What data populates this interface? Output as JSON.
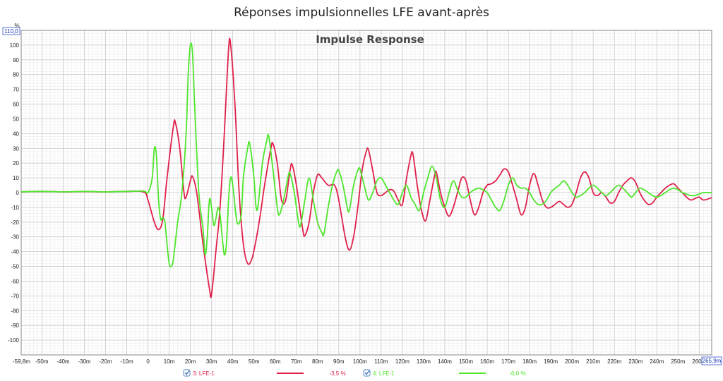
{
  "window": {
    "title": "Réponses impulsionnelles LFE avant-après"
  },
  "chart_data": {
    "type": "line",
    "title": "Impulse Response",
    "ylabel": "%",
    "y_top_box": "110,0",
    "x_right_box": "265,9m",
    "xlim": [
      -59.8,
      265.9
    ],
    "ylim": [
      -110,
      110
    ],
    "grid": true,
    "y_ticks": [
      100,
      90,
      80,
      70,
      60,
      50,
      40,
      30,
      20,
      10,
      0,
      -10,
      -20,
      -30,
      -40,
      -50,
      -60,
      -70,
      -80,
      -90,
      -100
    ],
    "x_ticks": [
      {
        "v": -59.8,
        "label": "-59,8m"
      },
      {
        "v": -50,
        "label": "-50m"
      },
      {
        "v": -40,
        "label": "-40m"
      },
      {
        "v": -30,
        "label": "-30m"
      },
      {
        "v": -20,
        "label": "-20m"
      },
      {
        "v": -10,
        "label": "-10m"
      },
      {
        "v": 0,
        "label": "0"
      },
      {
        "v": 10,
        "label": "10m"
      },
      {
        "v": 20,
        "label": "20m"
      },
      {
        "v": 30,
        "label": "30m"
      },
      {
        "v": 40,
        "label": "40m"
      },
      {
        "v": 50,
        "label": "50m"
      },
      {
        "v": 60,
        "label": "60m"
      },
      {
        "v": 70,
        "label": "70m"
      },
      {
        "v": 80,
        "label": "80m"
      },
      {
        "v": 90,
        "label": "90m"
      },
      {
        "v": 100,
        "label": "100m"
      },
      {
        "v": 110,
        "label": "110m"
      },
      {
        "v": 120,
        "label": "120m"
      },
      {
        "v": 130,
        "label": "130m"
      },
      {
        "v": 140,
        "label": "140m"
      },
      {
        "v": 150,
        "label": "150m"
      },
      {
        "v": 160,
        "label": "160m"
      },
      {
        "v": 170,
        "label": "170m"
      },
      {
        "v": 180,
        "label": "180m"
      },
      {
        "v": 190,
        "label": "190m"
      },
      {
        "v": 200,
        "label": "200m"
      },
      {
        "v": 210,
        "label": "210m"
      },
      {
        "v": 220,
        "label": "220m"
      },
      {
        "v": 230,
        "label": "230m"
      },
      {
        "v": 240,
        "label": "240m"
      },
      {
        "v": 250,
        "label": "250m"
      },
      {
        "v": 260,
        "label": "260m"
      }
    ],
    "series": [
      {
        "name": "3: LFE-1",
        "value_label": "-3,5 %",
        "color": "#e0204a",
        "points": [
          [
            -59.8,
            0.5
          ],
          [
            -50,
            0.8
          ],
          [
            -40,
            0.5
          ],
          [
            -30,
            0.7
          ],
          [
            -20,
            0.5
          ],
          [
            -10,
            0.8
          ],
          [
            -2,
            0.5
          ],
          [
            0,
            -5
          ],
          [
            3,
            -20
          ],
          [
            5,
            -25
          ],
          [
            7,
            -18
          ],
          [
            9,
            10
          ],
          [
            12,
            45
          ],
          [
            13,
            47
          ],
          [
            15,
            30
          ],
          [
            17,
            0
          ],
          [
            18,
            -3
          ],
          [
            20,
            8
          ],
          [
            21,
            11
          ],
          [
            23,
            0
          ],
          [
            26,
            -35
          ],
          [
            29,
            -65
          ],
          [
            30,
            -69
          ],
          [
            32,
            -40
          ],
          [
            34,
            -10
          ],
          [
            36,
            40
          ],
          [
            38,
            97
          ],
          [
            39,
            100
          ],
          [
            41,
            60
          ],
          [
            43,
            0
          ],
          [
            45,
            -35
          ],
          [
            47,
            -48
          ],
          [
            49,
            -45
          ],
          [
            51,
            -32
          ],
          [
            53,
            -15
          ],
          [
            55,
            5
          ],
          [
            58,
            30
          ],
          [
            59,
            33
          ],
          [
            61,
            20
          ],
          [
            63,
            -5
          ],
          [
            65,
            -5
          ],
          [
            67,
            15
          ],
          [
            68,
            19
          ],
          [
            70,
            5
          ],
          [
            73,
            -25
          ],
          [
            74,
            -29
          ],
          [
            76,
            -20
          ],
          [
            78,
            0
          ],
          [
            80,
            12
          ],
          [
            82,
            10
          ],
          [
            85,
            5
          ],
          [
            88,
            5
          ],
          [
            90,
            -5
          ],
          [
            93,
            -30
          ],
          [
            95,
            -39
          ],
          [
            97,
            -30
          ],
          [
            99,
            -10
          ],
          [
            101,
            15
          ],
          [
            103,
            28
          ],
          [
            104,
            29
          ],
          [
            106,
            15
          ],
          [
            108,
            0
          ],
          [
            110,
            -2
          ],
          [
            112,
            0
          ],
          [
            114,
            2
          ],
          [
            116,
            1
          ],
          [
            118,
            -5
          ],
          [
            120,
            -8
          ],
          [
            122,
            10
          ],
          [
            124,
            25
          ],
          [
            125,
            26
          ],
          [
            127,
            5
          ],
          [
            129,
            -12
          ],
          [
            131,
            -19
          ],
          [
            133,
            -5
          ],
          [
            135,
            10
          ],
          [
            136,
            14
          ],
          [
            138,
            0
          ],
          [
            140,
            -10
          ],
          [
            142,
            -16
          ],
          [
            144,
            -10
          ],
          [
            146,
            0
          ],
          [
            148,
            10
          ],
          [
            150,
            8
          ],
          [
            152,
            -5
          ],
          [
            154,
            -15
          ],
          [
            156,
            -10
          ],
          [
            158,
            0
          ],
          [
            160,
            5
          ],
          [
            162,
            6
          ],
          [
            164,
            8
          ],
          [
            166,
            12
          ],
          [
            168,
            16
          ],
          [
            170,
            14
          ],
          [
            172,
            5
          ],
          [
            174,
            -5
          ],
          [
            176,
            -15
          ],
          [
            178,
            -10
          ],
          [
            180,
            5
          ],
          [
            182,
            13
          ],
          [
            184,
            5
          ],
          [
            186,
            -5
          ],
          [
            188,
            -10
          ],
          [
            190,
            -10
          ],
          [
            192,
            -8
          ],
          [
            194,
            -6
          ],
          [
            196,
            -8
          ],
          [
            198,
            -10
          ],
          [
            200,
            -8
          ],
          [
            202,
            0
          ],
          [
            204,
            10
          ],
          [
            206,
            14
          ],
          [
            208,
            10
          ],
          [
            210,
            0
          ],
          [
            212,
            -2
          ],
          [
            214,
            0
          ],
          [
            216,
            -3
          ],
          [
            218,
            -7
          ],
          [
            220,
            -6
          ],
          [
            222,
            0
          ],
          [
            224,
            5
          ],
          [
            226,
            8
          ],
          [
            228,
            10
          ],
          [
            230,
            7
          ],
          [
            232,
            0
          ],
          [
            234,
            -5
          ],
          [
            236,
            -8
          ],
          [
            238,
            -7
          ],
          [
            240,
            -3
          ],
          [
            242,
            0
          ],
          [
            244,
            3
          ],
          [
            246,
            5
          ],
          [
            248,
            6
          ],
          [
            250,
            3
          ],
          [
            252,
            0
          ],
          [
            254,
            -3
          ],
          [
            256,
            -5
          ],
          [
            258,
            -4
          ],
          [
            260,
            -3
          ],
          [
            262,
            -5
          ],
          [
            265.9,
            -3.5
          ]
        ]
      },
      {
        "name": "4: LFE-1",
        "value_label": "-0,0 %",
        "color": "#4ee62c",
        "points": [
          [
            -59.8,
            0.5
          ],
          [
            -50,
            0.8
          ],
          [
            -40,
            0.5
          ],
          [
            -30,
            0.8
          ],
          [
            -20,
            0.5
          ],
          [
            -10,
            0.8
          ],
          [
            -2,
            1
          ],
          [
            0,
            0
          ],
          [
            2,
            10
          ],
          [
            3,
            30
          ],
          [
            4,
            25
          ],
          [
            5,
            -5
          ],
          [
            6,
            -18
          ],
          [
            7,
            -17
          ],
          [
            8,
            -20
          ],
          [
            9,
            -35
          ],
          [
            10,
            -48
          ],
          [
            11,
            -50
          ],
          [
            12,
            -45
          ],
          [
            14,
            -20
          ],
          [
            16,
            0
          ],
          [
            18,
            40
          ],
          [
            19,
            80
          ],
          [
            20,
            100
          ],
          [
            21,
            95
          ],
          [
            22,
            60
          ],
          [
            24,
            0
          ],
          [
            26,
            -25
          ],
          [
            27,
            -42
          ],
          [
            28,
            -30
          ],
          [
            29,
            -5
          ],
          [
            30,
            -10
          ],
          [
            31,
            -22
          ],
          [
            32,
            -18
          ],
          [
            33,
            -10
          ],
          [
            34,
            -15
          ],
          [
            35,
            -30
          ],
          [
            36,
            -42
          ],
          [
            37,
            -35
          ],
          [
            38,
            -5
          ],
          [
            39,
            10
          ],
          [
            40,
            5
          ],
          [
            42,
            -20
          ],
          [
            44,
            -15
          ],
          [
            45,
            10
          ],
          [
            47,
            30
          ],
          [
            48,
            33
          ],
          [
            50,
            10
          ],
          [
            51,
            -10
          ],
          [
            52,
            -8
          ],
          [
            54,
            20
          ],
          [
            56,
            35
          ],
          [
            57,
            38
          ],
          [
            59,
            15
          ],
          [
            61,
            -10
          ],
          [
            62,
            -15
          ],
          [
            64,
            -5
          ],
          [
            66,
            10
          ],
          [
            67,
            13
          ],
          [
            69,
            0
          ],
          [
            71,
            -20
          ],
          [
            72,
            -22
          ],
          [
            74,
            -5
          ],
          [
            76,
            10
          ],
          [
            78,
            -5
          ],
          [
            80,
            -20
          ],
          [
            82,
            -27
          ],
          [
            83,
            -28
          ],
          [
            85,
            -10
          ],
          [
            87,
            5
          ],
          [
            89,
            14
          ],
          [
            90,
            15
          ],
          [
            92,
            5
          ],
          [
            94,
            -10
          ],
          [
            95,
            -12
          ],
          [
            97,
            5
          ],
          [
            99,
            15
          ],
          [
            100,
            16
          ],
          [
            102,
            5
          ],
          [
            104,
            -5
          ],
          [
            106,
            0
          ],
          [
            108,
            8
          ],
          [
            110,
            10
          ],
          [
            112,
            5
          ],
          [
            114,
            0
          ],
          [
            116,
            -5
          ],
          [
            118,
            -8
          ],
          [
            120,
            0
          ],
          [
            122,
            5
          ],
          [
            124,
            -3
          ],
          [
            126,
            -8
          ],
          [
            128,
            -12
          ],
          [
            130,
            0
          ],
          [
            132,
            10
          ],
          [
            134,
            18
          ],
          [
            136,
            10
          ],
          [
            138,
            -5
          ],
          [
            140,
            -10
          ],
          [
            142,
            0
          ],
          [
            144,
            8
          ],
          [
            146,
            2
          ],
          [
            148,
            -3
          ],
          [
            150,
            -3
          ],
          [
            152,
            0
          ],
          [
            154,
            2
          ],
          [
            156,
            3
          ],
          [
            158,
            2
          ],
          [
            160,
            0
          ],
          [
            162,
            -5
          ],
          [
            164,
            -10
          ],
          [
            166,
            -12
          ],
          [
            168,
            -5
          ],
          [
            170,
            5
          ],
          [
            172,
            10
          ],
          [
            174,
            5
          ],
          [
            176,
            3
          ],
          [
            178,
            3
          ],
          [
            180,
            0
          ],
          [
            182,
            -5
          ],
          [
            184,
            -8
          ],
          [
            186,
            -8
          ],
          [
            188,
            -5
          ],
          [
            190,
            0
          ],
          [
            192,
            3
          ],
          [
            194,
            5
          ],
          [
            196,
            8
          ],
          [
            198,
            5
          ],
          [
            200,
            0
          ],
          [
            202,
            -3
          ],
          [
            204,
            -2
          ],
          [
            206,
            0
          ],
          [
            208,
            3
          ],
          [
            210,
            5
          ],
          [
            212,
            3
          ],
          [
            214,
            0
          ],
          [
            216,
            -2
          ],
          [
            218,
            0
          ],
          [
            220,
            3
          ],
          [
            222,
            5
          ],
          [
            224,
            3
          ],
          [
            226,
            0
          ],
          [
            228,
            -3
          ],
          [
            230,
            0
          ],
          [
            232,
            3
          ],
          [
            234,
            2
          ],
          [
            236,
            0
          ],
          [
            238,
            -2
          ],
          [
            240,
            -3
          ],
          [
            242,
            -2
          ],
          [
            244,
            0
          ],
          [
            246,
            2
          ],
          [
            248,
            3
          ],
          [
            250,
            2
          ],
          [
            252,
            0
          ],
          [
            254,
            -1
          ],
          [
            256,
            -2
          ],
          [
            258,
            -2
          ],
          [
            260,
            -1
          ],
          [
            262,
            0
          ],
          [
            265.9,
            0
          ]
        ]
      }
    ]
  }
}
